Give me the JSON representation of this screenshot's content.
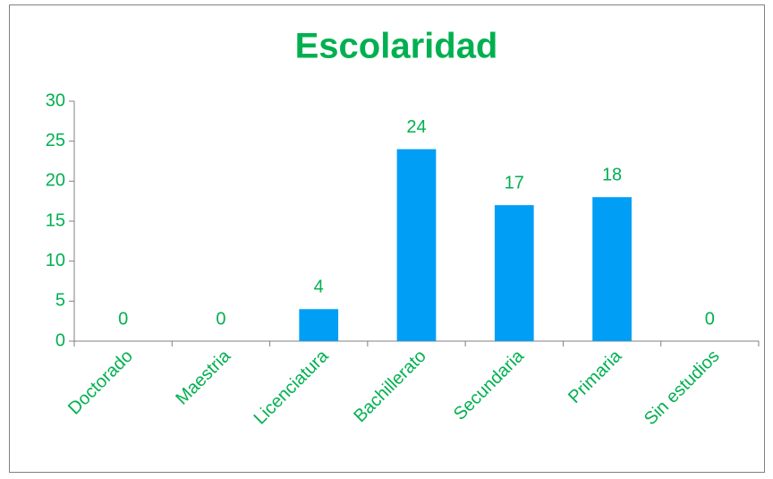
{
  "chart_data": {
    "type": "bar",
    "title": "Escolaridad",
    "categories": [
      "Doctorado",
      "Maestria",
      "Licenciatura",
      "Bachillerato",
      "Secundaria",
      "Primaria",
      "Sin estudios"
    ],
    "values": [
      0,
      0,
      4,
      24,
      17,
      18,
      0
    ],
    "color": "#009ef5",
    "text_color": "#00b050",
    "ylim": [
      0,
      30
    ],
    "yticks": [
      0,
      5,
      10,
      15,
      20,
      25,
      30
    ],
    "grid": false,
    "data_labels": true
  }
}
